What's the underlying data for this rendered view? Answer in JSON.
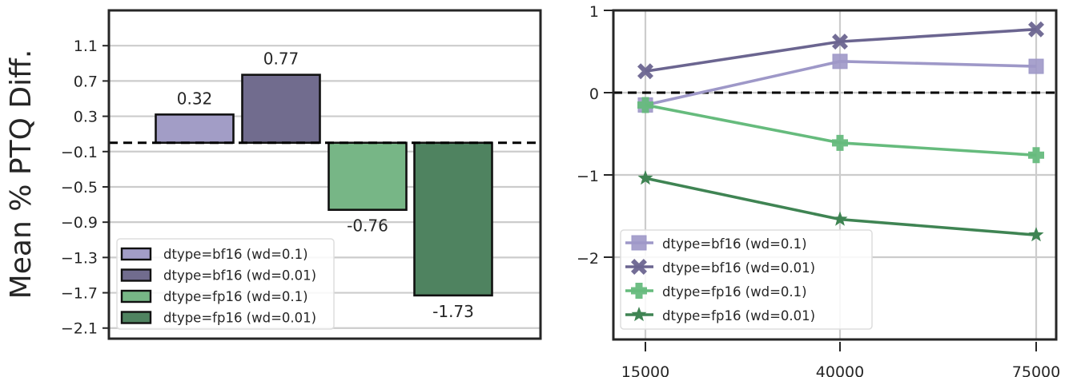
{
  "chart_data": [
    {
      "type": "bar",
      "title": "",
      "xlabel": "",
      "ylabel": "Mean % PTQ Diff.",
      "ylim": [
        -2.22,
        1.5
      ],
      "yticks": [
        1.1,
        0.7,
        0.3,
        -0.1,
        -0.5,
        -0.9,
        -1.3,
        -1.7,
        -2.1
      ],
      "ytick_labels": [
        "1.1",
        "0.7",
        "0.3",
        "−0.1",
        "−0.5",
        "−0.9",
        "−1.3",
        "−1.7",
        "−2.1"
      ],
      "grid": true,
      "reference_line": {
        "y": 0,
        "style": "dashed",
        "color": "#000000"
      },
      "categories": [
        "dtype=bf16 (wd=0.1)",
        "dtype=bf16 (wd=0.01)",
        "dtype=fp16 (wd=0.1)",
        "dtype=fp16 (wd=0.01)"
      ],
      "values": [
        0.32,
        0.77,
        -0.76,
        -1.73
      ],
      "value_labels": [
        "0.32",
        "0.77",
        "-0.76",
        "-1.73"
      ],
      "colors": [
        "#a29dc6",
        "#716c8e",
        "#77b686",
        "#4f8360"
      ],
      "legend": {
        "position": "lower left",
        "entries": [
          "dtype=bf16 (wd=0.1)",
          "dtype=bf16 (wd=0.01)",
          "dtype=fp16 (wd=0.1)",
          "dtype=fp16 (wd=0.01)"
        ]
      }
    },
    {
      "type": "line",
      "title": "",
      "xlabel": "",
      "ylabel": "",
      "x": [
        15000,
        40000,
        75000
      ],
      "xtick_labels": [
        "15000",
        "40000",
        "75000"
      ],
      "ylim": [
        -3.0,
        1.0
      ],
      "yticks": [
        1,
        0,
        -1,
        -2
      ],
      "ytick_labels": [
        "1",
        "0",
        "−1",
        "−2"
      ],
      "grid": true,
      "reference_line": {
        "y": 0,
        "style": "dashed",
        "color": "#000000"
      },
      "series": [
        {
          "name": "dtype=bf16 (wd=0.1)",
          "values": [
            -0.15,
            0.38,
            0.32
          ],
          "marker": "square",
          "color": "#9e98c8"
        },
        {
          "name": "dtype=bf16 (wd=0.01)",
          "values": [
            0.26,
            0.62,
            0.77
          ],
          "marker": "x",
          "color": "#6b6590"
        },
        {
          "name": "dtype=fp16 (wd=0.1)",
          "values": [
            -0.15,
            -0.61,
            -0.76
          ],
          "marker": "plus",
          "color": "#66bb7d"
        },
        {
          "name": "dtype=fp16 (wd=0.01)",
          "values": [
            -1.04,
            -1.54,
            -1.73
          ],
          "marker": "star",
          "color": "#3f8453"
        }
      ],
      "legend": {
        "position": "lower left",
        "entries": [
          "dtype=bf16 (wd=0.1)",
          "dtype=bf16 (wd=0.01)",
          "dtype=fp16 (wd=0.1)",
          "dtype=fp16 (wd=0.01)"
        ]
      }
    }
  ]
}
